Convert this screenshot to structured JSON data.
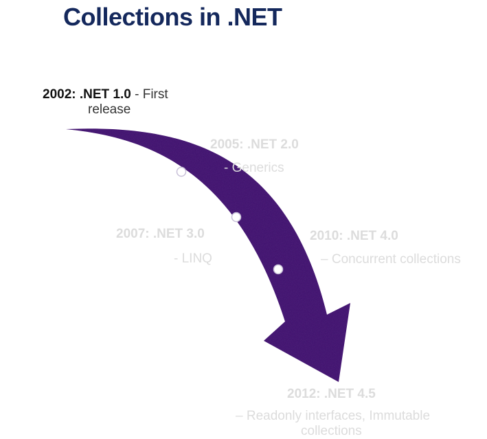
{
  "title": "Collections in .NET",
  "colors": {
    "title": "#14285c",
    "arrow": "#3b126a",
    "active_text": "#111111",
    "faded_text": "#dcdcdc"
  },
  "milestones": [
    {
      "year": "2002: .NET 1.0",
      "desc": "- First",
      "desc2": "release",
      "active": true
    },
    {
      "year": "2005: .NET 2.0",
      "desc": "- Generics",
      "active": false
    },
    {
      "year": "2007: .NET 3.0",
      "desc": "- LINQ",
      "active": false
    },
    {
      "year": "2010: .NET 4.0",
      "desc": "– Concurrent collections",
      "active": false
    },
    {
      "year": "2012: .NET 4.5",
      "desc": "– Readonly interfaces, Immutable",
      "desc2": "collections",
      "active": false
    }
  ]
}
